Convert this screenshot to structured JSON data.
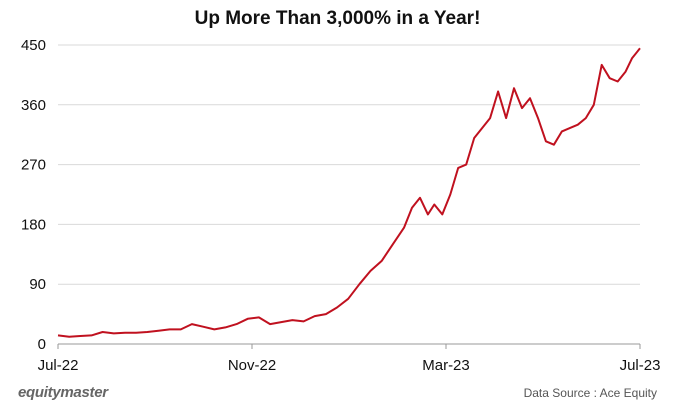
{
  "chart_data": {
    "type": "line",
    "title": "Up More Than 3,000% in a Year!",
    "xlabel": "",
    "ylabel": "",
    "ylim": [
      0,
      450
    ],
    "yticks": [
      0,
      90,
      180,
      270,
      360,
      450
    ],
    "xticks": [
      "Jul-22",
      "Nov-22",
      "Mar-23",
      "Jul-23"
    ],
    "xlim": [
      "2022-07-01",
      "2023-07-01"
    ],
    "grid": "horizontal",
    "color": "#c0111f",
    "x": [
      "2022-07-01",
      "2022-07-08",
      "2022-07-15",
      "2022-07-22",
      "2022-07-29",
      "2022-08-05",
      "2022-08-12",
      "2022-08-19",
      "2022-08-26",
      "2022-09-02",
      "2022-09-09",
      "2022-09-16",
      "2022-09-23",
      "2022-09-30",
      "2022-10-07",
      "2022-10-14",
      "2022-10-21",
      "2022-10-28",
      "2022-11-04",
      "2022-11-11",
      "2022-11-18",
      "2022-11-25",
      "2022-12-02",
      "2022-12-09",
      "2022-12-16",
      "2022-12-23",
      "2022-12-30",
      "2023-01-06",
      "2023-01-13",
      "2023-01-20",
      "2023-01-27",
      "2023-02-03",
      "2023-02-08",
      "2023-02-13",
      "2023-02-18",
      "2023-02-22",
      "2023-02-27",
      "2023-03-04",
      "2023-03-09",
      "2023-03-14",
      "2023-03-19",
      "2023-03-24",
      "2023-03-29",
      "2023-04-03",
      "2023-04-08",
      "2023-04-13",
      "2023-04-18",
      "2023-04-23",
      "2023-04-28",
      "2023-05-03",
      "2023-05-08",
      "2023-05-13",
      "2023-05-18",
      "2023-05-23",
      "2023-05-28",
      "2023-06-02",
      "2023-06-07",
      "2023-06-12",
      "2023-06-17",
      "2023-06-22",
      "2023-06-26",
      "2023-07-01"
    ],
    "series": [
      {
        "values": [
          13,
          11,
          12,
          13,
          18,
          16,
          17,
          17,
          18,
          20,
          22,
          22,
          30,
          26,
          22,
          25,
          30,
          38,
          40,
          30,
          33,
          36,
          34,
          42,
          45,
          55,
          68,
          90,
          110,
          125,
          150,
          175,
          205,
          220,
          195,
          210,
          195,
          225,
          265,
          270,
          310,
          325,
          340,
          380,
          340,
          385,
          355,
          370,
          340,
          305,
          300,
          320,
          325,
          330,
          340,
          360,
          420,
          400,
          395,
          410,
          430,
          445
        ]
      }
    ]
  },
  "brand": "equitymaster",
  "source": "Data Source : Ace Equity"
}
